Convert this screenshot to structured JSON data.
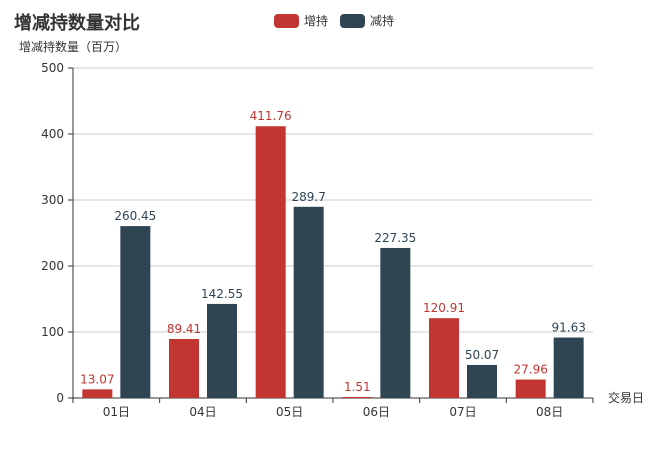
{
  "chart_data": {
    "type": "bar",
    "title": "增减持数量对比",
    "ylabel": "增减持数量（百万）",
    "xlabel": "交易日",
    "categories": [
      "01日",
      "04日",
      "05日",
      "06日",
      "07日",
      "08日"
    ],
    "ylim": [
      0,
      500
    ],
    "yticks": [
      0,
      100,
      200,
      300,
      400,
      500
    ],
    "grid": true,
    "legend_position": "top",
    "series": [
      {
        "name": "增持",
        "color": "#c23531",
        "values": [
          13.07,
          89.41,
          411.76,
          1.51,
          120.91,
          27.96
        ],
        "labels": [
          "13.07",
          "89.41",
          "411.76",
          "1.51",
          "120.91",
          "27.96"
        ]
      },
      {
        "name": "减持",
        "color": "#2f4554",
        "values": [
          260.45,
          142.55,
          289.7,
          227.35,
          50.07,
          91.63
        ],
        "labels": [
          "260.45",
          "142.55",
          "289.7",
          "227.35",
          "50.07",
          "91.63"
        ]
      }
    ]
  }
}
